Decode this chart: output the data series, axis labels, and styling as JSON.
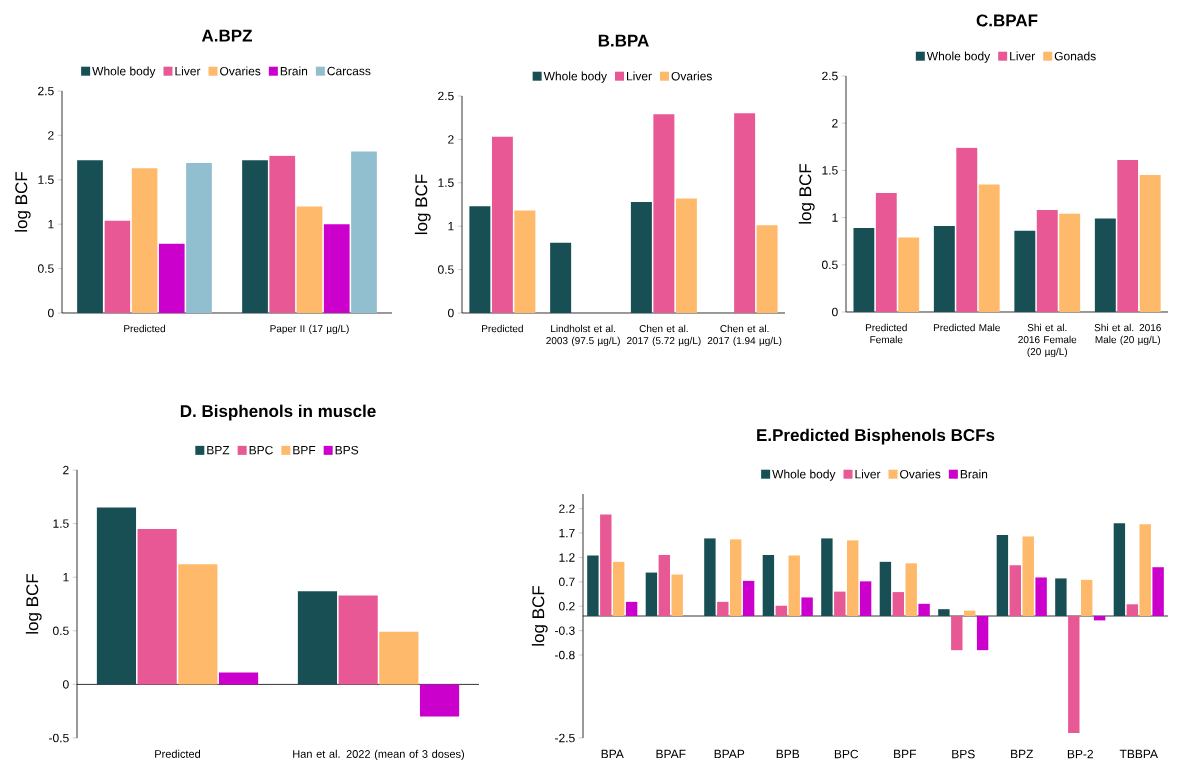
{
  "chart_data": [
    {
      "type": "bar",
      "title": "A.BPZ",
      "ylabel": "log BCF",
      "legend": "top",
      "categories": [
        "Predicted",
        "Paper II (17 µg/L)"
      ],
      "ylim": [
        0,
        2.5
      ],
      "yticks": [
        0,
        0.5,
        1,
        1.5,
        2,
        2.5
      ],
      "series": [
        {
          "name": "Whole body",
          "color": "#174f55",
          "values": [
            1.72,
            1.72
          ]
        },
        {
          "name": "Liver",
          "color": "#e75895",
          "values": [
            1.04,
            1.77
          ]
        },
        {
          "name": "Ovaries",
          "color": "#ffb96a",
          "values": [
            1.63,
            1.2
          ]
        },
        {
          "name": "Brain",
          "color": "#cc00cc",
          "values": [
            0.78,
            1.0
          ]
        },
        {
          "name": "Carcass",
          "color": "#92bfcf",
          "values": [
            1.69,
            1.82
          ]
        }
      ]
    },
    {
      "type": "bar",
      "title": "B.BPA",
      "ylabel": "log BCF",
      "legend": "top",
      "categories": [
        "Predicted",
        "Lindholst et al. 2003 (97.5 µg/L)",
        "Chen et al. 2017 (5.72 µg/L)",
        "Chen et al. 2017 (1.94 µg/L)"
      ],
      "ylim": [
        0,
        2.5
      ],
      "yticks": [
        0,
        0.5,
        1,
        1.5,
        2,
        2.5
      ],
      "series": [
        {
          "name": "Whole body",
          "color": "#174f55",
          "values": [
            1.23,
            0.81,
            1.28,
            null
          ]
        },
        {
          "name": "Liver",
          "color": "#e75895",
          "values": [
            2.03,
            null,
            2.29,
            2.3
          ]
        },
        {
          "name": "Ovaries",
          "color": "#ffb96a",
          "values": [
            1.18,
            null,
            1.32,
            1.01
          ]
        }
      ]
    },
    {
      "type": "bar",
      "title": "C.BPAF",
      "ylabel": "log BCF",
      "legend": "top",
      "categories": [
        "Predicted Female",
        "Predicted Male",
        "Shi et al. 2016 Female (20 µg/L)",
        "Shi et al. 2016 Male (20 µg/L)"
      ],
      "ylim": [
        0,
        2.5
      ],
      "yticks": [
        0,
        0.5,
        1,
        1.5,
        2,
        2.5
      ],
      "series": [
        {
          "name": "Whole body",
          "color": "#174f55",
          "values": [
            0.89,
            0.91,
            0.86,
            0.99
          ]
        },
        {
          "name": "Liver",
          "color": "#e75895",
          "values": [
            1.26,
            1.74,
            1.08,
            1.61
          ]
        },
        {
          "name": "Gonads",
          "color": "#ffb96a",
          "values": [
            0.79,
            1.35,
            1.04,
            1.45
          ]
        }
      ]
    },
    {
      "type": "bar",
      "title": "D. Bisphenols in muscle",
      "ylabel": "log BCF",
      "legend": "top",
      "categories": [
        "Predicted",
        "Han et al. 2022 (mean of 3 doses)"
      ],
      "ylim": [
        -0.5,
        2
      ],
      "yticks": [
        -0.5,
        0,
        0.5,
        1,
        1.5,
        2
      ],
      "series": [
        {
          "name": "BPZ",
          "color": "#174f55",
          "values": [
            1.65,
            0.87
          ]
        },
        {
          "name": "BPC",
          "color": "#e75895",
          "values": [
            1.45,
            0.83
          ]
        },
        {
          "name": "BPF",
          "color": "#ffb96a",
          "values": [
            1.12,
            0.49
          ]
        },
        {
          "name": "BPS",
          "color": "#cc00cc",
          "values": [
            0.11,
            -0.3
          ]
        }
      ]
    },
    {
      "type": "bar",
      "title": "E.Predicted Bisphenols BCFs",
      "ylabel": "log BCF",
      "legend": "top",
      "categories": [
        "BPA",
        "BPAF",
        "BPAP",
        "BPB",
        "BPC",
        "BPF",
        "BPS",
        "BPZ",
        "BP-2",
        "TBBPA"
      ],
      "ylim": [
        -2.5,
        2.5
      ],
      "yticks": [
        -2.5,
        -0.8,
        -0.3,
        0.2,
        0.7,
        1.2,
        1.7,
        2.2
      ],
      "series": [
        {
          "name": "Whole body",
          "color": "#174f55",
          "values": [
            1.24,
            0.89,
            1.59,
            1.25,
            1.59,
            1.11,
            0.14,
            1.66,
            0.77,
            1.9
          ]
        },
        {
          "name": "Liver",
          "color": "#e75895",
          "values": [
            2.08,
            1.25,
            0.29,
            0.21,
            0.5,
            0.49,
            -0.7,
            1.04,
            -2.4,
            0.24
          ]
        },
        {
          "name": "Ovaries",
          "color": "#ffb96a",
          "values": [
            1.11,
            0.85,
            1.57,
            1.24,
            1.55,
            1.08,
            0.11,
            1.63,
            0.74,
            1.88
          ]
        },
        {
          "name": "Brain",
          "color": "#cc00cc",
          "values": [
            0.29,
            null,
            0.72,
            0.38,
            0.71,
            0.25,
            -0.7,
            0.79,
            -0.09,
            1.0
          ]
        }
      ]
    }
  ]
}
